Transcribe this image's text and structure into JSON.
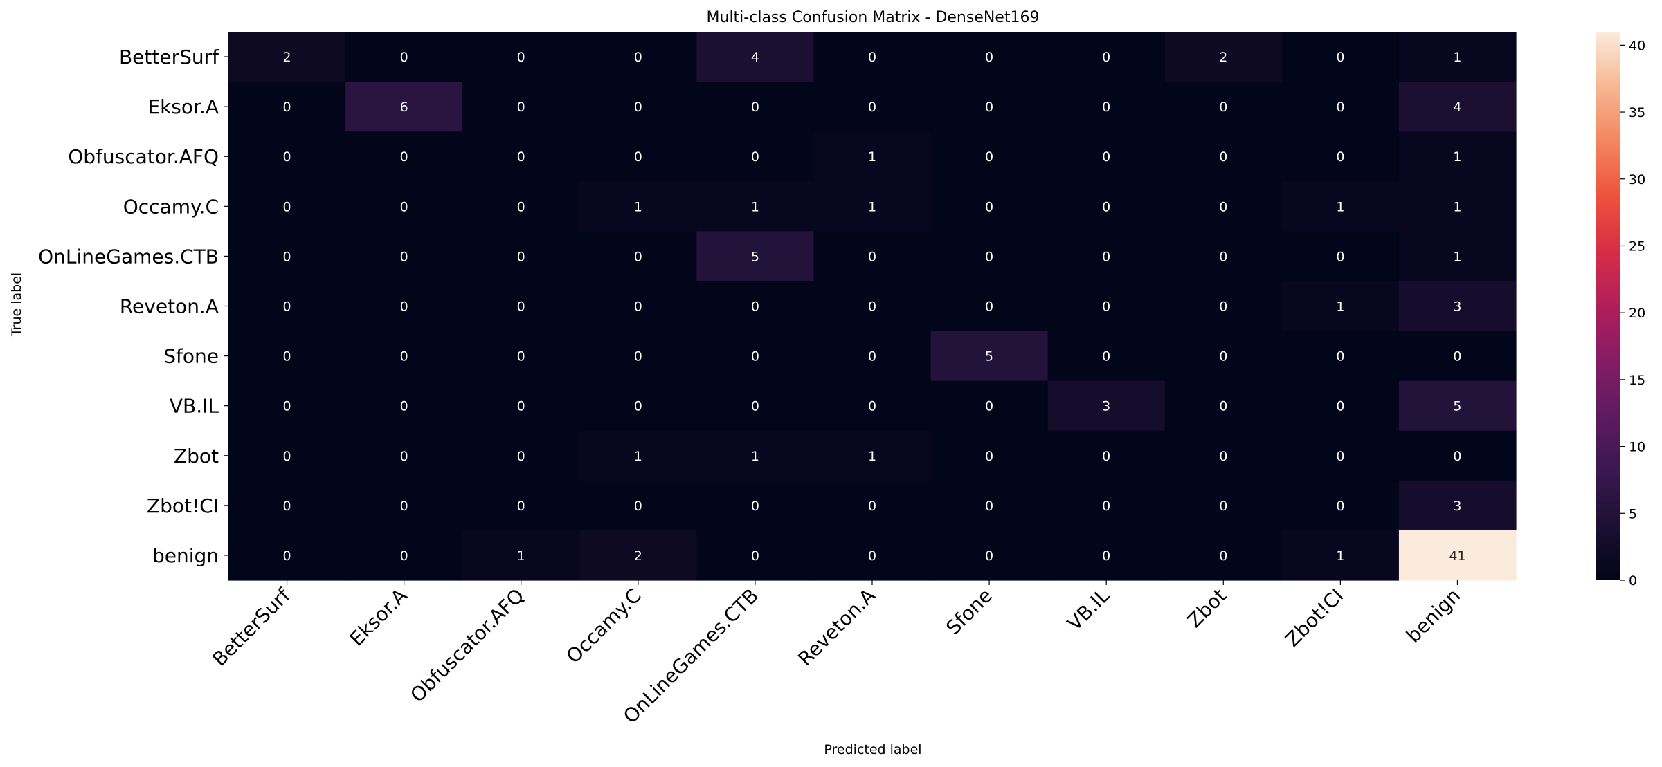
{
  "chart_data": {
    "type": "heatmap",
    "title": "Multi-class Confusion Matrix - DenseNet169",
    "xlabel": "Predicted label",
    "ylabel": "True label",
    "x_categories": [
      "BetterSurf",
      "Eksor.A",
      "Obfuscator.AFQ",
      "Occamy.C",
      "OnLineGames.CTB",
      "Reveton.A",
      "Sfone",
      "VB.IL",
      "Zbot",
      "Zbot!CI",
      "benign"
    ],
    "y_categories": [
      "BetterSurf",
      "Eksor.A",
      "Obfuscator.AFQ",
      "Occamy.C",
      "OnLineGames.CTB",
      "Reveton.A",
      "Sfone",
      "VB.IL",
      "Zbot",
      "Zbot!CI",
      "benign"
    ],
    "values": [
      [
        2,
        0,
        0,
        0,
        4,
        0,
        0,
        0,
        2,
        0,
        1
      ],
      [
        0,
        6,
        0,
        0,
        0,
        0,
        0,
        0,
        0,
        0,
        4
      ],
      [
        0,
        0,
        0,
        0,
        0,
        1,
        0,
        0,
        0,
        0,
        1
      ],
      [
        0,
        0,
        0,
        1,
        1,
        1,
        0,
        0,
        0,
        1,
        1
      ],
      [
        0,
        0,
        0,
        0,
        5,
        0,
        0,
        0,
        0,
        0,
        1
      ],
      [
        0,
        0,
        0,
        0,
        0,
        0,
        0,
        0,
        0,
        1,
        3
      ],
      [
        0,
        0,
        0,
        0,
        0,
        0,
        5,
        0,
        0,
        0,
        0
      ],
      [
        0,
        0,
        0,
        0,
        0,
        0,
        0,
        3,
        0,
        0,
        5
      ],
      [
        0,
        0,
        0,
        1,
        1,
        1,
        0,
        0,
        0,
        0,
        0
      ],
      [
        0,
        0,
        0,
        0,
        0,
        0,
        0,
        0,
        0,
        0,
        3
      ],
      [
        0,
        0,
        1,
        2,
        0,
        0,
        0,
        0,
        0,
        1,
        41
      ]
    ],
    "value_range": [
      0,
      41
    ],
    "colormap": "rocket",
    "colorbar_ticks": [
      0,
      5,
      10,
      15,
      20,
      25,
      30,
      35,
      40
    ],
    "colorbar_tick_labels": [
      "0",
      "5",
      "10",
      "15",
      "20",
      "25",
      "30",
      "35",
      "40"
    ],
    "grid": false,
    "colorbar_position": "right"
  }
}
